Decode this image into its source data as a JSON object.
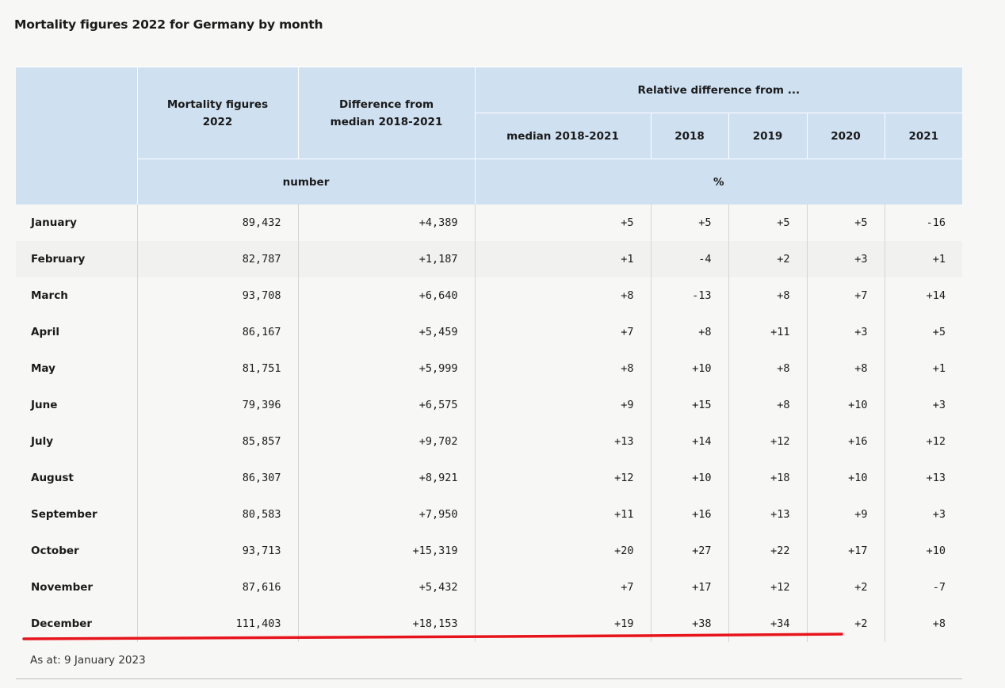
{
  "title": "Mortality figures 2022 for Germany by month",
  "header": {
    "col_mortality_line1": "Mortality figures",
    "col_mortality_line2": "2022",
    "col_diff_line1": "Difference from",
    "col_diff_line2": "median 2018-2021",
    "relative_group": "Relative difference from ...",
    "rel_median": "median 2018-2021",
    "rel_2018": "2018",
    "rel_2019": "2019",
    "rel_2020": "2020",
    "rel_2021": "2021",
    "unit_number": "number",
    "unit_percent": "%"
  },
  "rows": [
    {
      "month": "January",
      "mortality": "89,432",
      "diff": "+4,389",
      "median": "+5",
      "y2018": "+5",
      "y2019": "+5",
      "y2020": "+5",
      "y2021": "-16"
    },
    {
      "month": "February",
      "mortality": "82,787",
      "diff": "+1,187",
      "median": "+1",
      "y2018": "-4",
      "y2019": "+2",
      "y2020": "+3",
      "y2021": "+1"
    },
    {
      "month": "March",
      "mortality": "93,708",
      "diff": "+6,640",
      "median": "+8",
      "y2018": "-13",
      "y2019": "+8",
      "y2020": "+7",
      "y2021": "+14"
    },
    {
      "month": "April",
      "mortality": "86,167",
      "diff": "+5,459",
      "median": "+7",
      "y2018": "+8",
      "y2019": "+11",
      "y2020": "+3",
      "y2021": "+5"
    },
    {
      "month": "May",
      "mortality": "81,751",
      "diff": "+5,999",
      "median": "+8",
      "y2018": "+10",
      "y2019": "+8",
      "y2020": "+8",
      "y2021": "+1"
    },
    {
      "month": "June",
      "mortality": "79,396",
      "diff": "+6,575",
      "median": "+9",
      "y2018": "+15",
      "y2019": "+8",
      "y2020": "+10",
      "y2021": "+3"
    },
    {
      "month": "July",
      "mortality": "85,857",
      "diff": "+9,702",
      "median": "+13",
      "y2018": "+14",
      "y2019": "+12",
      "y2020": "+16",
      "y2021": "+12"
    },
    {
      "month": "August",
      "mortality": "86,307",
      "diff": "+8,921",
      "median": "+12",
      "y2018": "+10",
      "y2019": "+18",
      "y2020": "+10",
      "y2021": "+13"
    },
    {
      "month": "September",
      "mortality": "80,583",
      "diff": "+7,950",
      "median": "+11",
      "y2018": "+16",
      "y2019": "+13",
      "y2020": "+9",
      "y2021": "+3"
    },
    {
      "month": "October",
      "mortality": "93,713",
      "diff": "+15,319",
      "median": "+20",
      "y2018": "+27",
      "y2019": "+22",
      "y2020": "+17",
      "y2021": "+10"
    },
    {
      "month": "November",
      "mortality": "87,616",
      "diff": "+5,432",
      "median": "+7",
      "y2018": "+17",
      "y2019": "+12",
      "y2020": "+2",
      "y2021": "-7"
    },
    {
      "month": "December",
      "mortality": "111,403",
      "diff": "+18,153",
      "median": "+19",
      "y2018": "+38",
      "y2019": "+34",
      "y2020": "+2",
      "y2021": "+8"
    }
  ],
  "footnote": "As at: 9 January 2023",
  "colors": {
    "header_bg": "#cfe0f1",
    "annotation_line": "#e8141c"
  }
}
